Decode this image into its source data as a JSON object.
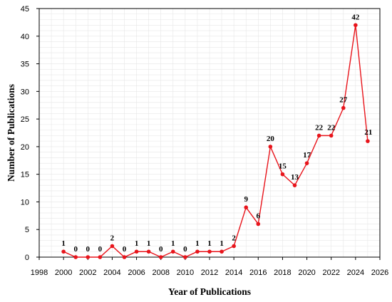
{
  "chart_data": {
    "type": "line",
    "xlabel": "Year of Publications",
    "ylabel": "Number of Publications",
    "xlim": [
      1998,
      2026
    ],
    "ylim": [
      0,
      45
    ],
    "xticks": [
      1998,
      2000,
      2002,
      2004,
      2006,
      2008,
      2010,
      2012,
      2014,
      2016,
      2018,
      2020,
      2022,
      2024,
      2026
    ],
    "yticks": [
      0,
      5,
      10,
      15,
      20,
      25,
      30,
      35,
      40,
      45
    ],
    "grid": true,
    "line_color": "#e8141b",
    "series": [
      {
        "x": [
          2000,
          2001,
          2002,
          2003,
          2004,
          2005,
          2006,
          2007,
          2008,
          2009,
          2010,
          2011,
          2012,
          2013,
          2014,
          2015,
          2016,
          2017,
          2018,
          2019,
          2020,
          2021,
          2022,
          2023,
          2024,
          2025
        ],
        "values": [
          1,
          0,
          0,
          0,
          2,
          0,
          1,
          1,
          0,
          1,
          0,
          1,
          1,
          1,
          2,
          9,
          6,
          20,
          15,
          13,
          17,
          22,
          22,
          27,
          42,
          21
        ]
      }
    ]
  }
}
